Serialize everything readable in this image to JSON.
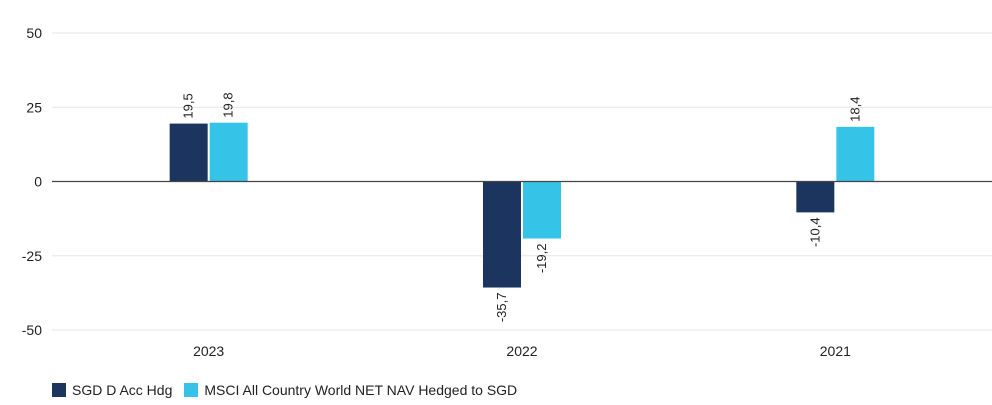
{
  "chart_data": {
    "type": "bar",
    "categories": [
      "2023",
      "2022",
      "2021"
    ],
    "series": [
      {
        "name": "SGD D Acc Hdg",
        "color": "#1c355e",
        "values": [
          19.5,
          -35.7,
          -10.4
        ],
        "labels": [
          "19,5",
          "-35,7",
          "-10,4"
        ]
      },
      {
        "name": "MSCI All Country World NET NAV Hedged to SGD",
        "color": "#35c4e8",
        "values": [
          19.8,
          -19.2,
          18.4
        ],
        "labels": [
          "19,8",
          "-19,2",
          "18,4"
        ]
      }
    ],
    "yticks": [
      50,
      25,
      0,
      -25,
      -50
    ],
    "ytick_labels": [
      "50",
      "25",
      "0",
      "-25",
      "-50"
    ],
    "ylim": [
      -50,
      50
    ],
    "grid": true,
    "legend_position": "bottom-left"
  }
}
